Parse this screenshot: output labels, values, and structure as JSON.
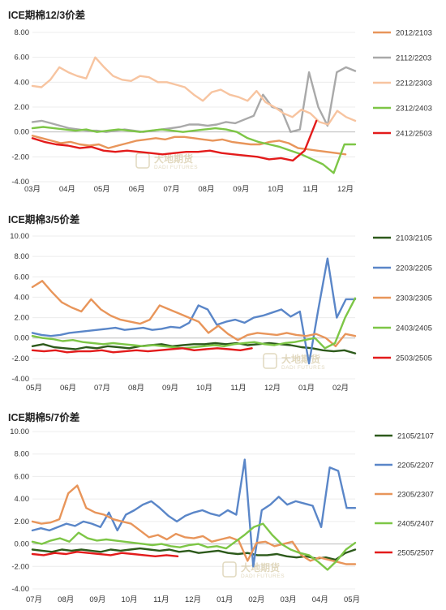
{
  "chart_data": [
    {
      "type": "line",
      "title": "ICE期棉12/3价差",
      "ylim": [
        -4,
        8
      ],
      "yticks": [
        "8.00",
        "6.00",
        "4.00",
        "2.00",
        "0.00",
        "-2.00",
        "-4.00"
      ],
      "x_ticks": [
        "03月",
        "04月",
        "05月",
        "06月",
        "07月",
        "08月",
        "09月",
        "10月",
        "11月",
        "12月"
      ],
      "legend_position": "right",
      "watermark": {
        "cn": "大地期货",
        "en": "DADI FUTURES"
      },
      "series": [
        {
          "name": "2012/2103",
          "color": "#e8955a",
          "values": [
            -0.3,
            -0.5,
            -0.7,
            -0.9,
            -0.8,
            -1.0,
            -1.1,
            -1.0,
            -1.3,
            -1.1,
            -0.9,
            -0.7,
            -0.6,
            -0.5,
            -0.6,
            -0.4,
            -0.4,
            -0.5,
            -0.6,
            -0.7,
            -0.6,
            -0.8,
            -0.9,
            -1.0,
            -1.0,
            -0.8,
            -0.7,
            -0.9,
            -1.3,
            -1.4,
            -1.5,
            -1.6,
            -1.7,
            -1.8
          ],
          "xr": [
            0.0,
            0.97
          ]
        },
        {
          "name": "2112/2203",
          "color": "#a9a9a9",
          "values": [
            0.8,
            0.9,
            0.7,
            0.5,
            0.3,
            0.2,
            0.1,
            0.1,
            0.0,
            0.1,
            0.2,
            0.1,
            0.0,
            0.1,
            0.2,
            0.3,
            0.4,
            0.6,
            0.6,
            0.5,
            0.6,
            0.8,
            0.7,
            1.0,
            1.3,
            3.0,
            2.0,
            1.8,
            0.0,
            0.2,
            4.8,
            2.0,
            0.5,
            4.8,
            5.2,
            4.9
          ],
          "xr": [
            0.0,
            1.0
          ]
        },
        {
          "name": "2212/2303",
          "color": "#f7c4a0",
          "values": [
            3.7,
            3.6,
            4.2,
            5.2,
            4.8,
            4.5,
            4.3,
            6.0,
            5.2,
            4.5,
            4.2,
            4.1,
            4.5,
            4.4,
            4.0,
            4.0,
            3.8,
            3.6,
            3.0,
            2.5,
            3.2,
            3.4,
            3.0,
            2.8,
            2.5,
            3.3,
            2.4,
            2.0,
            1.5,
            1.2,
            1.8,
            1.5,
            0.8,
            0.6,
            1.7,
            1.2,
            0.9
          ],
          "xr": [
            0.0,
            1.0
          ]
        },
        {
          "name": "2312/2403",
          "color": "#7dc646",
          "values": [
            0.3,
            0.4,
            0.3,
            0.2,
            0.1,
            0.2,
            0.0,
            0.1,
            0.2,
            0.1,
            0.0,
            0.1,
            0.2,
            0.1,
            0.0,
            0.1,
            0.2,
            0.3,
            0.2,
            0.0,
            -0.5,
            -0.8,
            -1.0,
            -1.2,
            -1.5,
            -1.8,
            -2.2,
            -2.6,
            -3.3,
            -1.0,
            -1.0
          ],
          "xr": [
            0.0,
            1.0
          ]
        },
        {
          "name": "2412/2503",
          "color": "#e31b1b",
          "values": [
            -0.5,
            -0.8,
            -1.0,
            -1.1,
            -1.3,
            -1.2,
            -1.5,
            -1.6,
            -1.5,
            -1.6,
            -1.7,
            -1.8,
            -1.7,
            -1.6,
            -1.6,
            -1.5,
            -1.7,
            -1.8,
            -1.9,
            -2.0,
            -2.2,
            -2.1,
            -2.3,
            -1.5,
            0.9
          ],
          "xr": [
            0.0,
            0.88
          ]
        }
      ]
    },
    {
      "type": "line",
      "title": "ICE期棉3/5价差",
      "ylim": [
        -4,
        10
      ],
      "yticks": [
        "10.00",
        "8.00",
        "6.00",
        "4.00",
        "2.00",
        "0.00",
        "-2.00",
        "-4.00"
      ],
      "x_ticks": [
        "05月",
        "06月",
        "07月",
        "08月",
        "09月",
        "10月",
        "11月",
        "12月",
        "01月",
        "02月"
      ],
      "legend_position": "right",
      "watermark": {
        "cn": "大地期货",
        "en": "DADI FUTURES"
      },
      "series": [
        {
          "name": "2103/2105",
          "color": "#2d5a1b",
          "values": [
            -0.8,
            -0.6,
            -0.9,
            -1.0,
            -1.1,
            -0.9,
            -1.0,
            -0.8,
            -0.9,
            -1.0,
            -0.8,
            -0.7,
            -0.6,
            -0.8,
            -0.7,
            -0.6,
            -0.6,
            -0.5,
            -0.6,
            -0.5,
            -0.7,
            -0.6,
            -0.5,
            -0.6,
            -0.7,
            -0.9,
            -1.0,
            -1.2,
            -1.3,
            -1.2,
            -1.5
          ],
          "xr": [
            0.0,
            1.0
          ]
        },
        {
          "name": "2203/2205",
          "color": "#5a86c8",
          "values": [
            0.5,
            0.3,
            0.2,
            0.3,
            0.5,
            0.6,
            0.7,
            0.8,
            0.9,
            1.0,
            0.8,
            0.9,
            1.0,
            0.8,
            0.9,
            1.1,
            1.0,
            1.5,
            3.2,
            2.8,
            1.3,
            1.6,
            1.8,
            1.5,
            2.0,
            2.2,
            2.5,
            2.8,
            2.1,
            2.6,
            -2.5,
            2.8,
            7.8,
            2.0,
            3.8,
            3.8
          ],
          "xr": [
            0.0,
            1.0
          ]
        },
        {
          "name": "2303/2305",
          "color": "#e8955a",
          "values": [
            5.0,
            5.6,
            4.5,
            3.5,
            3.0,
            2.6,
            3.8,
            2.8,
            2.2,
            1.8,
            1.6,
            1.4,
            1.8,
            3.2,
            2.8,
            2.4,
            2.0,
            1.6,
            0.5,
            1.2,
            0.4,
            -0.2,
            0.3,
            0.5,
            0.4,
            0.3,
            0.5,
            0.3,
            0.2,
            0.4,
            0.0,
            -0.8,
            0.4,
            0.2
          ],
          "xr": [
            0.0,
            1.0
          ]
        },
        {
          "name": "2403/2405",
          "color": "#7dc646",
          "values": [
            0.2,
            0.0,
            -0.1,
            -0.3,
            -0.2,
            -0.4,
            -0.5,
            -0.6,
            -0.5,
            -0.6,
            -0.7,
            -0.8,
            -0.7,
            -0.8,
            -0.9,
            -1.0,
            -0.9,
            -0.8,
            -0.7,
            -0.8,
            -0.6,
            -0.5,
            -0.4,
            -0.6,
            -0.7,
            -0.5,
            -0.4,
            -0.2,
            0.0,
            -1.0,
            -0.5,
            2.0,
            3.9
          ],
          "xr": [
            0.0,
            1.0
          ]
        },
        {
          "name": "2503/2505",
          "color": "#e31b1b",
          "values": [
            -1.2,
            -1.3,
            -1.2,
            -1.4,
            -1.3,
            -1.3,
            -1.2,
            -1.4,
            -1.3,
            -1.2,
            -1.3,
            -1.2,
            -1.1,
            -1.0,
            -1.2,
            -1.1,
            -1.0,
            -1.1,
            -1.2,
            -1.0
          ],
          "xr": [
            0.0,
            0.68
          ]
        }
      ]
    },
    {
      "type": "line",
      "title": "ICE期棉5/7价差",
      "ylim": [
        -4,
        10
      ],
      "yticks": [
        "10.00",
        "8.00",
        "6.00",
        "4.00",
        "2.00",
        "0.00",
        "-2.00",
        "-4.00"
      ],
      "x_ticks": [
        "07月",
        "08月",
        "09月",
        "10月",
        "11月",
        "12月",
        "01月",
        "02月",
        "03月",
        "04月",
        "05月"
      ],
      "legend_position": "right",
      "watermark": {
        "cn": "大地期货",
        "en": "DADI FUTURES"
      },
      "series": [
        {
          "name": "2105/2107",
          "color": "#2d5a1b",
          "values": [
            -0.5,
            -0.6,
            -0.7,
            -0.5,
            -0.6,
            -0.5,
            -0.6,
            -0.7,
            -0.5,
            -0.6,
            -0.5,
            -0.4,
            -0.5,
            -0.6,
            -0.5,
            -0.7,
            -0.6,
            -0.8,
            -0.7,
            -0.6,
            -0.8,
            -0.9,
            -0.8,
            -1.0,
            -1.0,
            -0.9,
            -1.1,
            -1.2,
            -1.1,
            -1.3,
            -1.2,
            -1.4,
            -0.8,
            -0.5
          ],
          "xr": [
            0.0,
            1.0
          ]
        },
        {
          "name": "2205/2207",
          "color": "#5a86c8",
          "values": [
            1.2,
            1.4,
            1.2,
            1.5,
            1.8,
            1.6,
            2.0,
            1.8,
            1.5,
            2.8,
            1.2,
            2.6,
            3.0,
            3.5,
            3.8,
            3.2,
            2.5,
            2.0,
            2.5,
            2.8,
            3.0,
            2.7,
            2.5,
            3.0,
            2.6,
            7.5,
            -2.0,
            3.0,
            3.5,
            4.2,
            3.5,
            3.8,
            3.6,
            3.4,
            1.5,
            6.8,
            6.5,
            3.2,
            3.2
          ],
          "xr": [
            0.0,
            1.0
          ]
        },
        {
          "name": "2305/2307",
          "color": "#e8955a",
          "values": [
            2.0,
            1.8,
            1.9,
            2.2,
            4.5,
            5.2,
            3.2,
            2.8,
            2.6,
            2.2,
            2.0,
            1.8,
            1.2,
            0.6,
            0.8,
            0.4,
            0.9,
            0.6,
            0.5,
            0.7,
            0.2,
            0.4,
            0.6,
            0.3,
            -1.5,
            0.1,
            0.2,
            -0.2,
            0.0,
            0.2,
            -1.0,
            -1.5,
            -1.2,
            -1.4,
            -1.6,
            -1.8,
            -1.8
          ],
          "xr": [
            0.0,
            1.0
          ]
        },
        {
          "name": "2405/2407",
          "color": "#7dc646",
          "values": [
            0.2,
            0.0,
            0.3,
            0.5,
            0.2,
            1.0,
            0.5,
            0.3,
            0.4,
            0.3,
            0.2,
            0.1,
            0.0,
            -0.1,
            0.0,
            -0.2,
            -0.3,
            -0.1,
            0.0,
            -0.3,
            -0.2,
            -0.4,
            0.2,
            0.8,
            1.5,
            1.8,
            0.8,
            0.0,
            -0.5,
            -0.8,
            -1.0,
            -1.6,
            -2.3,
            -1.5,
            -0.5,
            0.1
          ],
          "xr": [
            0.0,
            1.0
          ]
        },
        {
          "name": "2505/2507",
          "color": "#e31b1b",
          "values": [
            -0.9,
            -1.0,
            -0.8,
            -0.9,
            -0.7,
            -0.8,
            -0.9,
            -1.0,
            -0.8,
            -0.9,
            -1.0,
            -1.1,
            -1.0,
            -1.1
          ],
          "xr": [
            0.0,
            0.45
          ]
        }
      ]
    }
  ]
}
